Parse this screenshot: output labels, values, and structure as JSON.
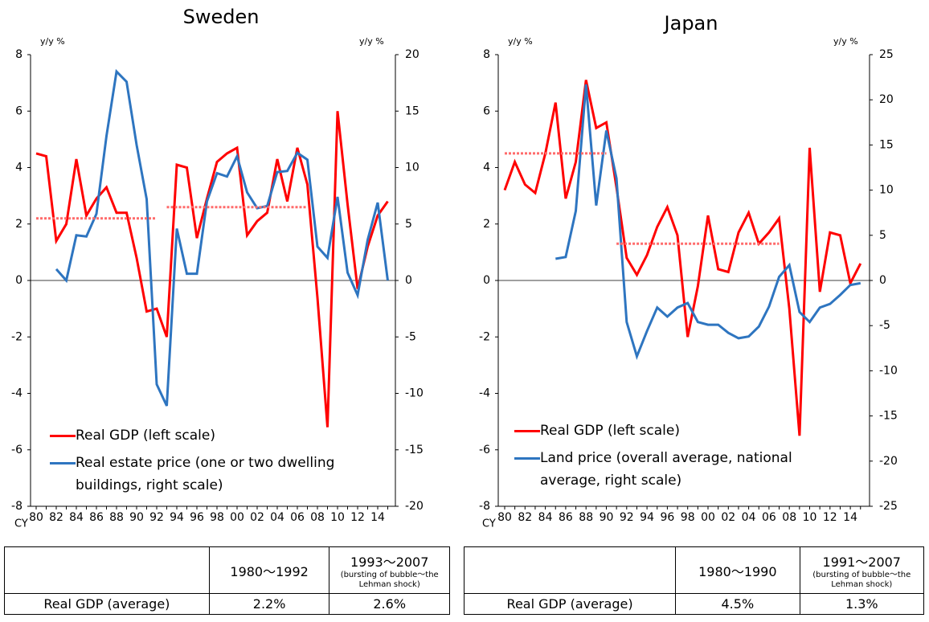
{
  "chart_data": [
    {
      "type": "line",
      "title": "Sweden",
      "y_label": "y/y %",
      "y2_label": "y/y %",
      "x_label": "CY",
      "categories": [
        "80",
        null,
        "82",
        null,
        "84",
        null,
        "86",
        null,
        "88",
        null,
        "90",
        null,
        "92",
        null,
        "94",
        null,
        "96",
        null,
        "98",
        null,
        "00",
        null,
        "02",
        null,
        "04",
        null,
        "06",
        null,
        "08",
        null,
        "10",
        null,
        "12",
        null,
        "14",
        null
      ],
      "ylim": [
        -8,
        8
      ],
      "yticks": [
        -8,
        -6,
        -4,
        -2,
        0,
        2,
        4,
        6,
        8
      ],
      "y2lim": [
        -20,
        20
      ],
      "y2ticks": [
        -20,
        -15,
        -10,
        -5,
        0,
        5,
        10,
        15,
        20
      ],
      "series": [
        {
          "name": "Real GDP (left scale)",
          "color": "#ff0000",
          "values": [
            4.5,
            4.4,
            1.4,
            2.0,
            4.3,
            2.3,
            2.9,
            3.3,
            2.4,
            2.4,
            0.8,
            -1.1,
            -1.0,
            -2.0,
            4.1,
            4.0,
            1.5,
            2.9,
            4.2,
            4.5,
            4.7,
            1.6,
            2.1,
            2.4,
            4.3,
            2.8,
            4.7,
            3.4,
            -0.6,
            -5.2,
            6.0,
            2.7,
            -0.3,
            1.2,
            2.3,
            2.8
          ]
        },
        {
          "name": "Real estate price (one or two dwelling buildings, right scale)",
          "color": "#2e75c0",
          "axis": "y2",
          "values": [
            null,
            null,
            1.0,
            0,
            4.0,
            3.9,
            5.9,
            12.8,
            18.5,
            17.6,
            12.0,
            7.2,
            -9.2,
            -11.1,
            4.6,
            0.6,
            0.6,
            7.0,
            9.5,
            9.2,
            11.0,
            7.8,
            6.4,
            6.6,
            9.6,
            9.7,
            11.3,
            10.7,
            3.0,
            2.0,
            7.4,
            0.7,
            -1.3,
            3.6,
            6.9,
            0
          ]
        },
        {
          "color": "#ff6b6b",
          "dash": true,
          "values": [
            2.2,
            2.2,
            2.2,
            2.2,
            2.2,
            2.2,
            2.2,
            2.2,
            2.2,
            2.2,
            2.2,
            2.2,
            2.2,
            null,
            null,
            null,
            null,
            null,
            null,
            null,
            null,
            null,
            null,
            null,
            null,
            null,
            null,
            null,
            null,
            null,
            null,
            null,
            null,
            null,
            null,
            null
          ]
        },
        {
          "color": "#ff6b6b",
          "dash": true,
          "values": [
            null,
            null,
            null,
            null,
            null,
            null,
            null,
            null,
            null,
            null,
            null,
            null,
            null,
            2.6,
            2.6,
            2.6,
            2.6,
            2.6,
            2.6,
            2.6,
            2.6,
            2.6,
            2.6,
            2.6,
            2.6,
            2.6,
            2.6,
            2.6,
            null,
            null,
            null,
            null,
            null,
            null,
            null,
            null
          ]
        }
      ],
      "table": {
        "columns": [
          {
            "period": "1980〜1992"
          },
          {
            "period": "1993〜2007",
            "note": "(bursting of bubble〜the Lehman shock)"
          }
        ],
        "rows": [
          {
            "label": "Real GDP (average)",
            "cells": [
              "2.2%",
              "2.6%"
            ]
          }
        ]
      }
    },
    {
      "type": "line",
      "title": "Japan",
      "y_label": "y/y %",
      "y2_label": "y/y %",
      "x_label": "CY",
      "categories": [
        "80",
        null,
        "82",
        null,
        "84",
        null,
        "86",
        null,
        "88",
        null,
        "90",
        null,
        "92",
        null,
        "94",
        null,
        "96",
        null,
        "98",
        null,
        "00",
        null,
        "02",
        null,
        "04",
        null,
        "06",
        null,
        "08",
        null,
        "10",
        null,
        "12",
        null,
        "14",
        null
      ],
      "ylim": [
        -8,
        8
      ],
      "yticks": [
        -8,
        -6,
        -4,
        -2,
        0,
        2,
        4,
        6,
        8
      ],
      "y2lim": [
        -25,
        25
      ],
      "y2ticks": [
        -25,
        -20,
        -15,
        -10,
        -5,
        0,
        5,
        10,
        15,
        20,
        25
      ],
      "series": [
        {
          "name": "Real GDP (left scale)",
          "color": "#ff0000",
          "values": [
            3.2,
            4.2,
            3.4,
            3.1,
            4.5,
            6.3,
            2.9,
            4.2,
            7.1,
            5.4,
            5.6,
            3.3,
            0.8,
            0.2,
            0.9,
            1.9,
            2.6,
            1.6,
            -2.0,
            -0.2,
            2.3,
            0.4,
            0.3,
            1.7,
            2.4,
            1.3,
            1.7,
            2.2,
            -1.0,
            -5.5,
            4.7,
            -0.4,
            1.7,
            1.6,
            -0.1,
            0.6
          ]
        },
        {
          "name": "Land price (overall average, national average, right scale)",
          "color": "#2e75c0",
          "axis": "y2",
          "values": [
            null,
            null,
            null,
            null,
            null,
            2.4,
            2.6,
            7.7,
            21.7,
            8.3,
            16.6,
            11.3,
            -4.6,
            -8.4,
            -5.6,
            -3.0,
            -4.0,
            -3.0,
            -2.5,
            -4.6,
            -4.9,
            -4.9,
            -5.8,
            -6.4,
            -6.2,
            -5.1,
            -2.9,
            0.4,
            1.7,
            -3.5,
            -4.6,
            -3.0,
            -2.6,
            -1.6,
            -0.5,
            -0.3
          ]
        },
        {
          "color": "#ff6b6b",
          "dash": true,
          "values": [
            4.5,
            4.5,
            4.5,
            4.5,
            4.5,
            4.5,
            4.5,
            4.5,
            4.5,
            4.5,
            4.5,
            null,
            null,
            null,
            null,
            null,
            null,
            null,
            null,
            null,
            null,
            null,
            null,
            null,
            null,
            null,
            null,
            null,
            null,
            null,
            null,
            null,
            null,
            null,
            null,
            null
          ]
        },
        {
          "color": "#ff6b6b",
          "dash": true,
          "values": [
            null,
            null,
            null,
            null,
            null,
            null,
            null,
            null,
            null,
            null,
            null,
            1.3,
            1.3,
            1.3,
            1.3,
            1.3,
            1.3,
            1.3,
            1.3,
            1.3,
            1.3,
            1.3,
            1.3,
            1.3,
            1.3,
            1.3,
            1.3,
            1.3,
            null,
            null,
            null,
            null,
            null,
            null,
            null,
            null
          ]
        }
      ],
      "table": {
        "columns": [
          {
            "period": "1980〜1990"
          },
          {
            "period": "1991〜2007",
            "note": "(bursting of bubble〜the Lehman shock)"
          }
        ],
        "rows": [
          {
            "label": "Real GDP (average)",
            "cells": [
              "4.5%",
              "1.3%"
            ]
          }
        ]
      }
    }
  ]
}
